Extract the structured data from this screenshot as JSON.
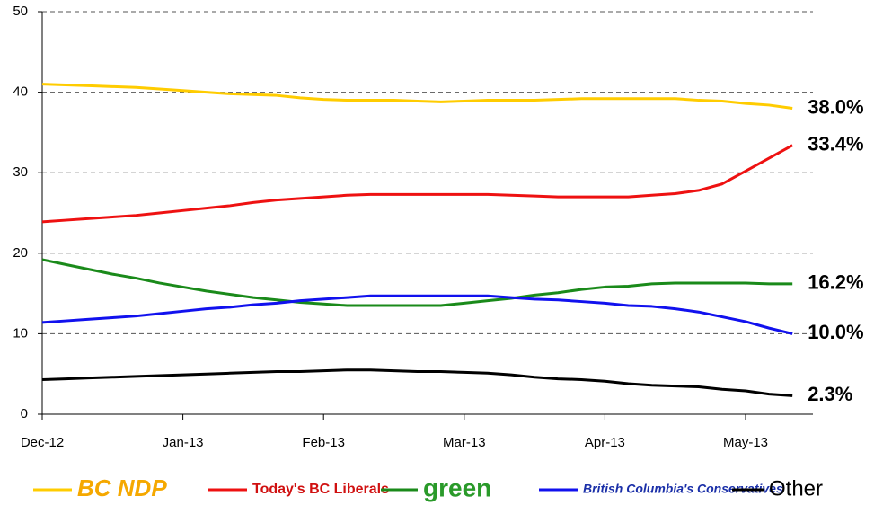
{
  "chart_data": {
    "type": "line",
    "categories": [
      "Dec-12",
      null,
      null,
      null,
      null,
      null,
      "Jan-13",
      null,
      null,
      null,
      null,
      null,
      "Feb-13",
      null,
      null,
      null,
      null,
      null,
      "Mar-13",
      null,
      null,
      null,
      null,
      null,
      "Apr-13",
      null,
      null,
      null,
      null,
      null,
      "May-13",
      null,
      null
    ],
    "ylim": [
      0,
      50
    ],
    "yticks": [
      0,
      10,
      20,
      30,
      40,
      50
    ],
    "grid": true,
    "series": [
      {
        "name": "BC NDP",
        "color": "#ffcc00",
        "end_label": "38.0%",
        "values": [
          41.0,
          40.9,
          40.8,
          40.7,
          40.6,
          40.4,
          40.2,
          40.0,
          39.8,
          39.7,
          39.6,
          39.3,
          39.1,
          39.0,
          39.0,
          39.0,
          38.9,
          38.8,
          38.9,
          39.0,
          39.0,
          39.0,
          39.1,
          39.2,
          39.2,
          39.2,
          39.2,
          39.2,
          39.0,
          38.9,
          38.6,
          38.4,
          38.0
        ]
      },
      {
        "name": "Today's BC Liberals",
        "color": "#ee1111",
        "end_label": "33.4%",
        "values": [
          23.9,
          24.1,
          24.3,
          24.5,
          24.7,
          25.0,
          25.3,
          25.6,
          25.9,
          26.3,
          26.6,
          26.8,
          27.0,
          27.2,
          27.3,
          27.3,
          27.3,
          27.3,
          27.3,
          27.3,
          27.2,
          27.1,
          27.0,
          27.0,
          27.0,
          27.0,
          27.2,
          27.4,
          27.8,
          28.6,
          30.2,
          31.8,
          33.4
        ]
      },
      {
        "name": "green",
        "color": "#1a8a1a",
        "end_label": "16.2%",
        "values": [
          19.2,
          18.6,
          18.0,
          17.4,
          16.9,
          16.3,
          15.8,
          15.3,
          14.9,
          14.5,
          14.2,
          13.9,
          13.7,
          13.5,
          13.5,
          13.5,
          13.5,
          13.5,
          13.8,
          14.1,
          14.4,
          14.8,
          15.1,
          15.5,
          15.8,
          15.9,
          16.2,
          16.3,
          16.3,
          16.3,
          16.3,
          16.2,
          16.2
        ]
      },
      {
        "name": "British Columbia's Conservatives",
        "color": "#1111ee",
        "end_label": "10.0%",
        "values": [
          11.4,
          11.6,
          11.8,
          12.0,
          12.2,
          12.5,
          12.8,
          13.1,
          13.3,
          13.6,
          13.8,
          14.1,
          14.3,
          14.5,
          14.7,
          14.7,
          14.7,
          14.7,
          14.7,
          14.7,
          14.5,
          14.3,
          14.2,
          14.0,
          13.8,
          13.5,
          13.4,
          13.1,
          12.7,
          12.1,
          11.5,
          10.7,
          10.0
        ]
      },
      {
        "name": "Other",
        "color": "#000000",
        "end_label": "2.3%",
        "values": [
          4.3,
          4.4,
          4.5,
          4.6,
          4.7,
          4.8,
          4.9,
          5.0,
          5.1,
          5.2,
          5.3,
          5.3,
          5.4,
          5.5,
          5.5,
          5.4,
          5.3,
          5.3,
          5.2,
          5.1,
          4.9,
          4.6,
          4.4,
          4.3,
          4.1,
          3.8,
          3.6,
          3.5,
          3.4,
          3.1,
          2.9,
          2.5,
          2.3
        ]
      }
    ]
  }
}
